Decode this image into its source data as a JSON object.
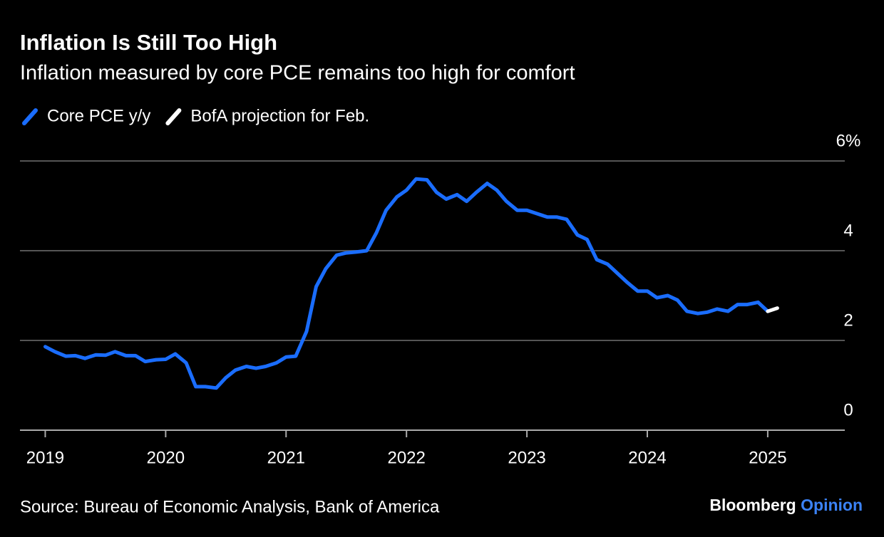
{
  "chart_data": {
    "type": "line",
    "title": "Inflation Is Still Too High",
    "subtitle": "Inflation measured by core PCE remains too high for comfort",
    "source": "Source: Bureau of Economic Analysis, Bank of America",
    "branding": {
      "name": "Bloomberg",
      "suffix": "Opinion"
    },
    "x": [
      2019.0,
      2019.08,
      2019.17,
      2019.25,
      2019.33,
      2019.42,
      2019.5,
      2019.58,
      2019.67,
      2019.75,
      2019.83,
      2019.92,
      2020.0,
      2020.08,
      2020.17,
      2020.25,
      2020.33,
      2020.42,
      2020.5,
      2020.58,
      2020.67,
      2020.75,
      2020.83,
      2020.92,
      2021.0,
      2021.08,
      2021.17,
      2021.25,
      2021.33,
      2021.42,
      2021.5,
      2021.58,
      2021.67,
      2021.75,
      2021.83,
      2021.92,
      2022.0,
      2022.08,
      2022.17,
      2022.25,
      2022.33,
      2022.42,
      2022.5,
      2022.58,
      2022.67,
      2022.75,
      2022.83,
      2022.92,
      2023.0,
      2023.08,
      2023.17,
      2023.25,
      2023.33,
      2023.42,
      2023.5,
      2023.58,
      2023.67,
      2023.75,
      2023.83,
      2023.92,
      2024.0,
      2024.08,
      2024.17,
      2024.25,
      2024.33,
      2024.42,
      2024.5,
      2024.58,
      2024.67,
      2024.75,
      2024.83,
      2024.92,
      2025.0,
      2025.08
    ],
    "series": [
      {
        "name": "Core PCE y/y",
        "color": "#1a6dff",
        "values": [
          1.86,
          1.75,
          1.65,
          1.66,
          1.6,
          1.68,
          1.67,
          1.75,
          1.66,
          1.66,
          1.53,
          1.57,
          1.58,
          1.7,
          1.5,
          0.97,
          0.97,
          0.94,
          1.17,
          1.34,
          1.42,
          1.38,
          1.42,
          1.5,
          1.63,
          1.65,
          2.2,
          3.2,
          3.6,
          3.9,
          3.95,
          3.97,
          4.0,
          4.4,
          4.9,
          5.2,
          5.35,
          5.6,
          5.58,
          5.3,
          5.15,
          5.25,
          5.1,
          5.3,
          5.5,
          5.35,
          5.1,
          4.9,
          4.9,
          4.83,
          4.75,
          4.75,
          4.7,
          4.35,
          4.25,
          3.8,
          3.7,
          3.5,
          3.3,
          3.1,
          3.1,
          2.95,
          3.0,
          2.9,
          2.65,
          2.6,
          2.63,
          2.7,
          2.65,
          2.8,
          2.8,
          2.85,
          2.65,
          null
        ]
      },
      {
        "name": "BofA projection for Feb.",
        "color": "#ffffff",
        "values": [
          null,
          null,
          null,
          null,
          null,
          null,
          null,
          null,
          null,
          null,
          null,
          null,
          null,
          null,
          null,
          null,
          null,
          null,
          null,
          null,
          null,
          null,
          null,
          null,
          null,
          null,
          null,
          null,
          null,
          null,
          null,
          null,
          null,
          null,
          null,
          null,
          null,
          null,
          null,
          null,
          null,
          null,
          null,
          null,
          null,
          null,
          null,
          null,
          null,
          null,
          null,
          null,
          null,
          null,
          null,
          null,
          null,
          null,
          null,
          null,
          null,
          null,
          null,
          null,
          null,
          null,
          null,
          null,
          null,
          null,
          null,
          null,
          2.65,
          2.72
        ]
      }
    ],
    "xlim": [
      2018.79,
      2025.64
    ],
    "xticks": [
      2019,
      2020,
      2021,
      2022,
      2023,
      2024,
      2025
    ],
    "ylim": [
      0,
      6
    ],
    "yticks": [
      0,
      2,
      4,
      {
        "value": 6,
        "label": "6%"
      }
    ],
    "grid": true
  }
}
